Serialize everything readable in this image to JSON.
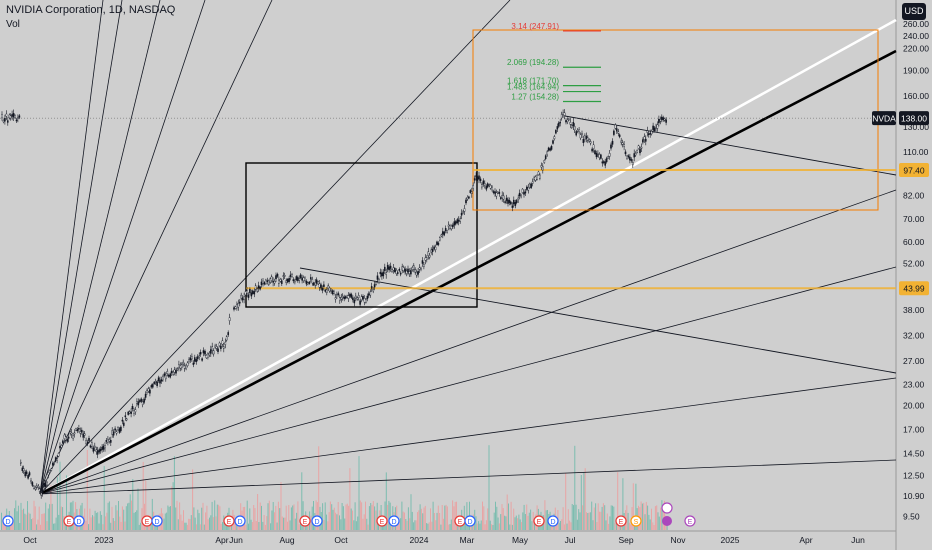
{
  "header": {
    "title": "NVIDIA Corporation, 1D, NASDAQ",
    "indicator": "Vol",
    "currency_button": "USD"
  },
  "price_tag": {
    "symbol": "NVDA",
    "price": "138.00"
  },
  "colors": {
    "background": "#cfcfcf",
    "candles": "#131722",
    "white_line": "#ffffff",
    "fib_red": "#e53935",
    "fib_green": "#2e9e43",
    "level_orange": "#f2b233",
    "box_orange": "#f57c00",
    "volume_green": "#66b8a8",
    "volume_red": "#ee9a9a",
    "event_blue": "#2962ff",
    "event_red": "#e53935",
    "event_green": "#26a69a",
    "event_orange": "#ff9800",
    "event_purple": "#ab47bc"
  },
  "chart_data": {
    "type": "candlestick",
    "symbol": "NVDA",
    "interval": "1D",
    "exchange": "NASDAQ",
    "y_scale": "log",
    "y_ticks": [
      "260.00",
      "240.00",
      "220.00",
      "190.00",
      "160.00",
      "130.00",
      "110.00",
      "97.40",
      "82.00",
      "70.00",
      "60.00",
      "52.00",
      "43.99",
      "38.00",
      "32.00",
      "27.00",
      "23.00",
      "20.00",
      "17.00",
      "14.50",
      "12.50",
      "10.90",
      "9.50"
    ],
    "x_ticks": [
      "Oct",
      "2023",
      "Apr",
      "Jun",
      "Aug",
      "Oct",
      "2024",
      "Mar",
      "May",
      "Jul",
      "Sep",
      "Nov",
      "2025",
      "Apr",
      "Jun"
    ],
    "price_path": [
      {
        "x": "2022-09-20",
        "y": 13.5
      },
      {
        "x": "2022-10-14",
        "y": 11.0
      },
      {
        "x": "2022-11-10",
        "y": 16.0
      },
      {
        "x": "2022-11-28",
        "y": 17.0
      },
      {
        "x": "2022-12-20",
        "y": 14.5
      },
      {
        "x": "2023-01-31",
        "y": 19.5
      },
      {
        "x": "2023-03-01",
        "y": 23.5
      },
      {
        "x": "2023-04-10",
        "y": 27.0
      },
      {
        "x": "2023-05-20",
        "y": 30.5
      },
      {
        "x": "2023-05-26",
        "y": 38.5
      },
      {
        "x": "2023-06-20",
        "y": 43.5
      },
      {
        "x": "2023-07-20",
        "y": 47.0
      },
      {
        "x": "2023-08-25",
        "y": 46.5
      },
      {
        "x": "2023-09-25",
        "y": 42.0
      },
      {
        "x": "2023-10-31",
        "y": 40.5
      },
      {
        "x": "2023-11-20",
        "y": 49.5
      },
      {
        "x": "2023-12-31",
        "y": 49.5
      },
      {
        "x": "2024-01-25",
        "y": 61.0
      },
      {
        "x": "2024-02-20",
        "y": 72.0
      },
      {
        "x": "2024-03-08",
        "y": 92.0
      },
      {
        "x": "2024-04-19",
        "y": 77.0
      },
      {
        "x": "2024-05-22",
        "y": 95.0
      },
      {
        "x": "2024-06-18",
        "y": 140.0
      },
      {
        "x": "2024-07-25",
        "y": 112.0
      },
      {
        "x": "2024-08-07",
        "y": 99.0
      },
      {
        "x": "2024-08-19",
        "y": 130.0
      },
      {
        "x": "2024-09-06",
        "y": 102.0
      },
      {
        "x": "2024-09-25",
        "y": 123.0
      },
      {
        "x": "2024-10-16",
        "y": 138.0
      }
    ],
    "last_price": 138.0,
    "fibonacci_extensions": [
      {
        "ratio": "3.14",
        "price": 247.91,
        "label": "3.14 (247.91)"
      },
      {
        "ratio": "2.069",
        "price": 194.28,
        "label": "2.069 (194.28)"
      },
      {
        "ratio": "1.618",
        "price": 171.7,
        "label": "1.618 (171.70)"
      },
      {
        "ratio": "1.483",
        "price": 164.94,
        "label": "1.483 (164.94)"
      },
      {
        "ratio": "1.27",
        "price": 154.28,
        "label": "1.27 (154.28)"
      }
    ],
    "horizontal_levels": [
      {
        "price": 97.4,
        "label": "97.40"
      },
      {
        "price": 43.99,
        "label": "43.99"
      }
    ],
    "event_markers": [
      "D",
      "E",
      "D",
      "E",
      "D",
      "E",
      "D",
      "E",
      "D",
      "E",
      "D",
      "E",
      "D",
      "E",
      "D",
      "E",
      "S",
      "E",
      "D",
      "E"
    ]
  }
}
